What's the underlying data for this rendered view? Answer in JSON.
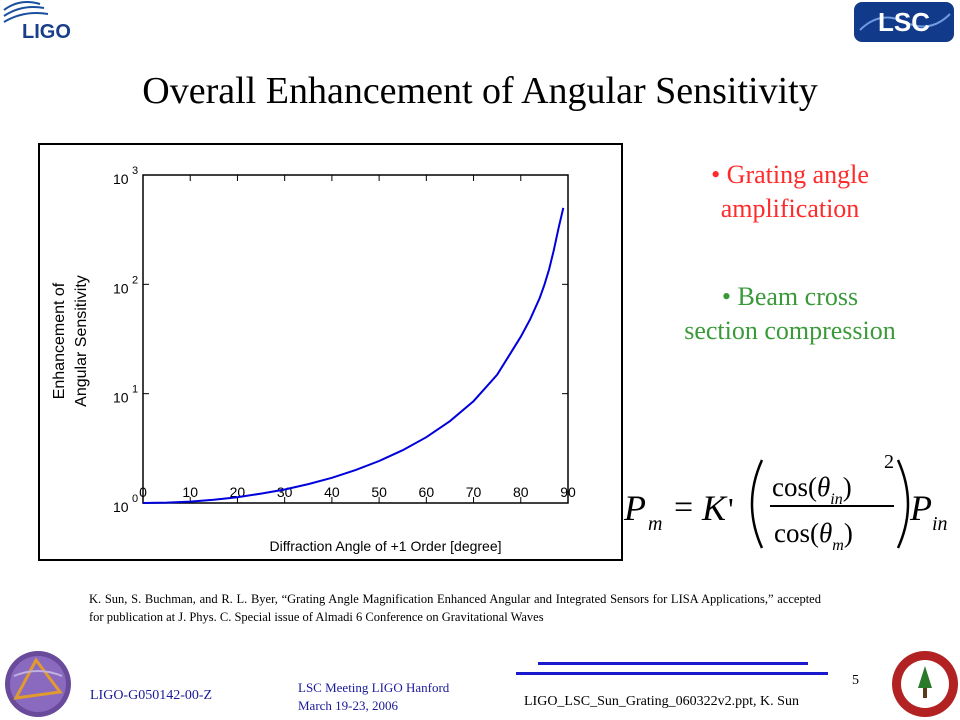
{
  "header": {
    "title": "Overall Enhancement of Angular Sensitivity",
    "ligo_logo_text": "LIGO",
    "lsc_logo_text": "LSC"
  },
  "chart_data": {
    "type": "line",
    "xlabel": "Diffraction Angle of +1 Order [degree]",
    "ylabel_line1": "Enhancement of",
    "ylabel_line2": "Angular Sensitivity",
    "xlim": [
      0,
      90
    ],
    "ylim": [
      1,
      1000
    ],
    "y_scale": "log",
    "x_ticks": [
      "0",
      "10",
      "20",
      "30",
      "40",
      "50",
      "60",
      "70",
      "80",
      "90"
    ],
    "y_ticks": [
      {
        "base": "10",
        "exp": "0"
      },
      {
        "base": "10",
        "exp": "1"
      },
      {
        "base": "10",
        "exp": "2"
      },
      {
        "base": "10",
        "exp": "3"
      }
    ],
    "grid": false,
    "series": [
      {
        "x": [
          0,
          5,
          10,
          15,
          20,
          25,
          30,
          35,
          40,
          45,
          50,
          55,
          60,
          65,
          70,
          75,
          80,
          82,
          84,
          85,
          86,
          87,
          88,
          89
        ],
        "y": [
          1.0,
          1.008,
          1.03,
          1.07,
          1.13,
          1.22,
          1.33,
          1.49,
          1.7,
          2.0,
          2.42,
          3.04,
          4.0,
          5.6,
          8.55,
          14.9,
          33.2,
          48.0,
          75.0,
          99.0,
          137.0,
          205.0,
          328.0,
          500.0
        ]
      }
    ]
  },
  "bullets": [
    {
      "line1": "• Grating angle",
      "line2": "amplification",
      "color": "#ff2a2a"
    },
    {
      "line1": "• Beam cross",
      "line2": "section compression",
      "color": "#3a9a3a"
    }
  ],
  "formula": {
    "lhs": "P",
    "lhs_sub": "m",
    "equals": "=",
    "k": "K",
    "prime": "'",
    "num": "cos(",
    "num_theta": "θ",
    "num_sub": "in",
    "den": "cos(",
    "den_theta": "θ",
    "den_sub": "m",
    "close": ")",
    "power": "2",
    "rhs": "P",
    "rhs_sub": "in"
  },
  "reference": "K. Sun, S. Buchman, and R. L. Byer, “Grating Angle Magnification Enhanced Angular and Integrated Sensors for LISA Applications,” accepted for publication at J. Phys. C. Special issue of Almadi 6 Conference on Gravitational Waves",
  "footer": {
    "doc_id": "LIGO-G050142-00-Z",
    "meeting_line1": "LSC Meeting LIGO Hanford",
    "meeting_line2": "March 19-23, 2006",
    "filename": "LIGO_LSC_Sun_Grating_060322v2.ppt, K. Sun",
    "page_number": "5"
  }
}
